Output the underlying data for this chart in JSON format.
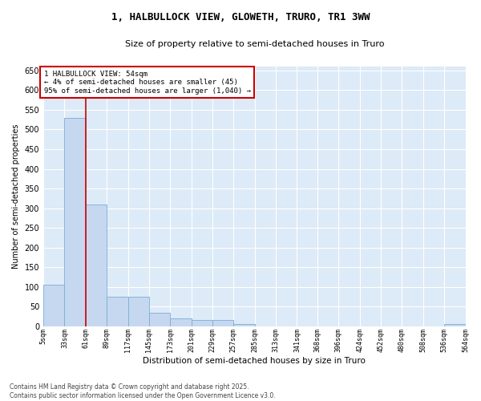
{
  "title_line1": "1, HALBULLOCK VIEW, GLOWETH, TRURO, TR1 3WW",
  "title_line2": "Size of property relative to semi-detached houses in Truro",
  "xlabel": "Distribution of semi-detached houses by size in Truro",
  "ylabel": "Number of semi-detached properties",
  "bar_color": "#c5d8f0",
  "bar_edge_color": "#7aadd4",
  "bg_color": "#ddeaf7",
  "grid_color": "#ffffff",
  "annotation_text": "1 HALBULLOCK VIEW: 54sqm\n← 4% of semi-detached houses are smaller (45)\n95% of semi-detached houses are larger (1,040) →",
  "redline_x": 61,
  "footnote": "Contains HM Land Registry data © Crown copyright and database right 2025.\nContains public sector information licensed under the Open Government Licence v3.0.",
  "bin_edges": [
    5,
    33,
    61,
    89,
    117,
    145,
    173,
    201,
    229,
    257,
    285,
    313,
    341,
    368,
    396,
    424,
    452,
    480,
    508,
    536,
    564
  ],
  "bar_heights": [
    105,
    530,
    310,
    75,
    75,
    35,
    20,
    15,
    15,
    5,
    0,
    0,
    0,
    0,
    0,
    0,
    0,
    0,
    0,
    5
  ],
  "ylim": [
    0,
    660
  ],
  "yticks": [
    0,
    50,
    100,
    150,
    200,
    250,
    300,
    350,
    400,
    450,
    500,
    550,
    600,
    650
  ]
}
